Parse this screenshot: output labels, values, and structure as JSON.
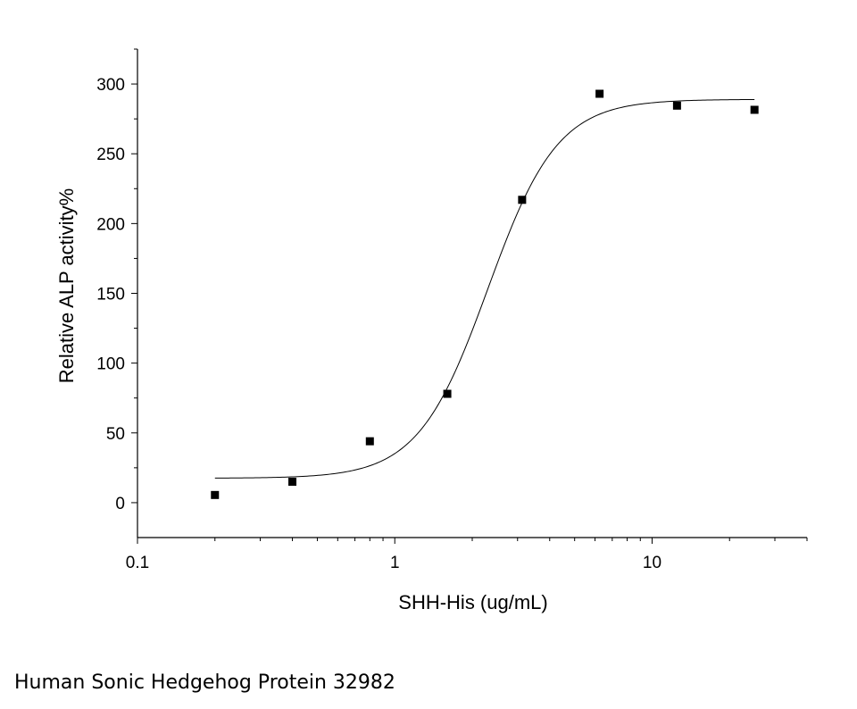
{
  "chart_data": {
    "type": "scatter",
    "xlabel": "SHH-His (ug/mL)",
    "ylabel": "Relative ALP activity%",
    "xscale": "log",
    "xlim": [
      0.1,
      40
    ],
    "ylim": [
      -25,
      325
    ],
    "xticks": [
      {
        "value": 0.1,
        "label": "0.1"
      },
      {
        "value": 1,
        "label": "1"
      },
      {
        "value": 10,
        "label": "10"
      }
    ],
    "yticks": [
      {
        "value": 0,
        "label": "0"
      },
      {
        "value": 50,
        "label": "50"
      },
      {
        "value": 100,
        "label": "100"
      },
      {
        "value": 150,
        "label": "150"
      },
      {
        "value": 200,
        "label": "200"
      },
      {
        "value": 250,
        "label": "250"
      },
      {
        "value": 300,
        "label": "300"
      }
    ],
    "series": [
      {
        "marker": "square",
        "color": "#000000",
        "x": [
          0.2,
          0.4,
          0.8,
          1.6,
          3.125,
          6.25,
          12.5,
          25
        ],
        "y": [
          5.5,
          15,
          44,
          78,
          217,
          293,
          284.5,
          281.5
        ]
      }
    ],
    "fit": {
      "type": "four-parameter logistic",
      "bottom": 17.5,
      "top": 289,
      "ec50": 2.3,
      "hill": 3.2
    },
    "grid": false,
    "legend": "none"
  },
  "caption": "Human Sonic Hedgehog Protein 32982"
}
